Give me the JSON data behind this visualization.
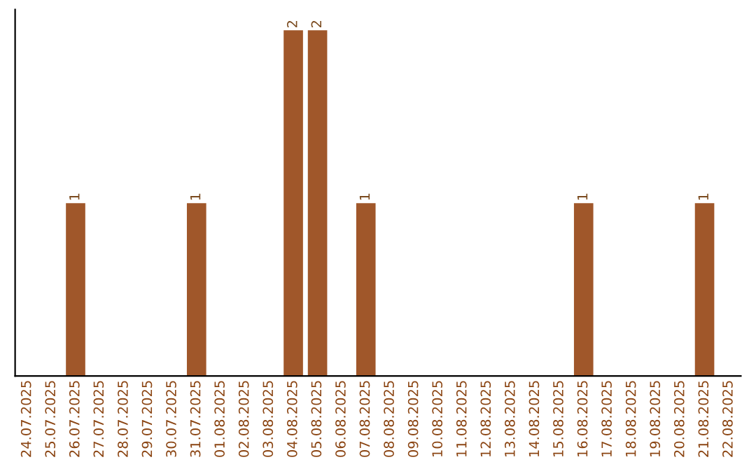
{
  "chart_data": {
    "type": "bar",
    "categories": [
      "24.07.2025",
      "25.07.2025",
      "26.07.2025",
      "27.07.2025",
      "28.07.2025",
      "29.07.2025",
      "30.07.2025",
      "31.07.2025",
      "01.08.2025",
      "02.08.2025",
      "03.08.2025",
      "04.08.2025",
      "05.08.2025",
      "06.08.2025",
      "07.08.2025",
      "08.08.2025",
      "09.08.2025",
      "10.08.2025",
      "11.08.2025",
      "12.08.2025",
      "13.08.2025",
      "14.08.2025",
      "15.08.2025",
      "16.08.2025",
      "17.08.2025",
      "18.08.2025",
      "19.08.2025",
      "20.08.2025",
      "21.08.2025",
      "22.08.2025"
    ],
    "values": [
      0,
      0,
      1,
      0,
      0,
      0,
      0,
      1,
      0,
      0,
      0,
      2,
      2,
      0,
      1,
      0,
      0,
      0,
      0,
      0,
      0,
      0,
      0,
      1,
      0,
      0,
      0,
      0,
      1,
      0
    ],
    "value_labels": [
      null,
      null,
      "1",
      null,
      null,
      null,
      null,
      "1",
      null,
      null,
      null,
      "2",
      "2",
      null,
      "1",
      null,
      null,
      null,
      null,
      null,
      null,
      null,
      null,
      "1",
      null,
      null,
      null,
      null,
      "1",
      null
    ],
    "color": "#a0572a",
    "tick_labels": "x",
    "grid": false,
    "legend": false
  }
}
